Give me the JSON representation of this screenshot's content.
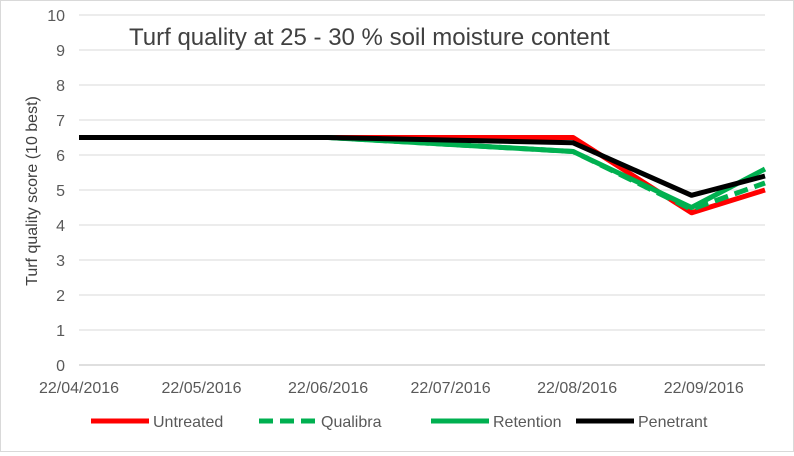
{
  "chart_data": {
    "type": "line",
    "title": "Turf quality at 25 - 30 % soil moisture content",
    "xlabel": "",
    "ylabel": "Turf quality score (10 best)",
    "ylim": [
      0,
      10
    ],
    "yticks": [
      0,
      1,
      2,
      3,
      4,
      5,
      6,
      7,
      8,
      9,
      10
    ],
    "xlim": [
      "2016-04-22",
      "2016-10-07"
    ],
    "xticks": [
      "22/04/2016",
      "22/05/2016",
      "22/06/2016",
      "22/07/2016",
      "22/08/2016",
      "22/09/2016"
    ],
    "x": [
      "2016-04-22",
      "2016-06-22",
      "2016-08-21",
      "2016-09-19",
      "2016-10-07"
    ],
    "grid": "horizontal",
    "legend_position": "bottom",
    "series": [
      {
        "name": "Untreated",
        "color": "#ff0000",
        "style": "solid",
        "values": [
          6.5,
          6.5,
          6.5,
          4.35,
          5.0
        ]
      },
      {
        "name": "Qualibra",
        "color": "#00b050",
        "style": "dashed",
        "values": [
          6.5,
          6.5,
          6.1,
          4.45,
          5.2
        ]
      },
      {
        "name": "Retention",
        "color": "#00b050",
        "style": "solid",
        "values": [
          6.5,
          6.5,
          6.1,
          4.5,
          5.6
        ]
      },
      {
        "name": "Penetrant",
        "color": "#000000",
        "style": "solid",
        "values": [
          6.5,
          6.5,
          6.35,
          4.85,
          5.4
        ]
      }
    ]
  }
}
